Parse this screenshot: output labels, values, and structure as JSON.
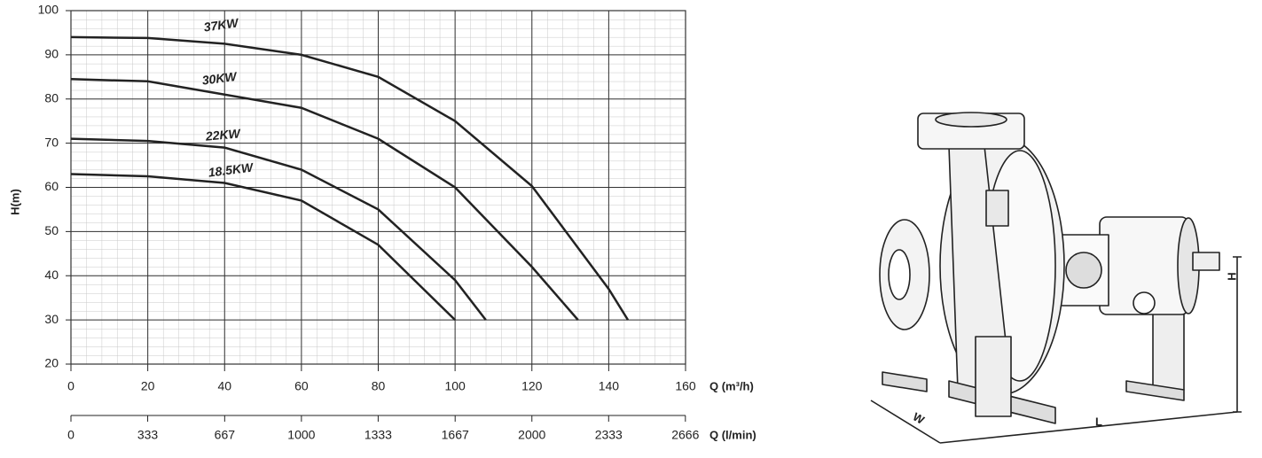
{
  "chart_data": {
    "type": "line",
    "y_label": "H(m)",
    "x_label": "Q (m³/h)",
    "x2_label": "Q (l/min)",
    "xlim": [
      0,
      160
    ],
    "xticks": [
      0,
      20,
      40,
      60,
      80,
      100,
      120,
      140,
      160
    ],
    "ylim": [
      20,
      100
    ],
    "yticks": [
      20,
      30,
      40,
      50,
      60,
      70,
      80,
      90,
      100
    ],
    "x2lim": [
      0,
      2666.67
    ],
    "x2ticks": [
      0,
      333,
      667,
      1000,
      1333,
      1667,
      2000,
      2333,
      2666
    ],
    "grid": true,
    "minor_grid": true,
    "series": [
      {
        "name": "37KW",
        "color": "#222222",
        "x": [
          0,
          20,
          40,
          60,
          80,
          100,
          120,
          140,
          145
        ],
        "values": [
          94,
          93.8,
          92.5,
          90,
          85,
          75,
          60.3,
          37,
          30
        ]
      },
      {
        "name": "30KW",
        "color": "#222222",
        "x": [
          0,
          20,
          40,
          60,
          80,
          100,
          120,
          132
        ],
        "values": [
          84.5,
          84,
          81,
          78,
          71,
          60,
          42,
          30
        ]
      },
      {
        "name": "22KW",
        "color": "#222222",
        "x": [
          0,
          20,
          40,
          60,
          80,
          100,
          108
        ],
        "values": [
          71,
          70.5,
          69,
          64,
          55,
          39,
          30
        ]
      },
      {
        "name": "18.5KW",
        "color": "#222222",
        "x": [
          0,
          20,
          40,
          60,
          80,
          100
        ],
        "values": [
          63,
          62.5,
          61,
          57,
          47,
          30
        ]
      }
    ]
  },
  "illustration": {
    "width_label": "W",
    "length_label": "L",
    "height_label": "H"
  }
}
